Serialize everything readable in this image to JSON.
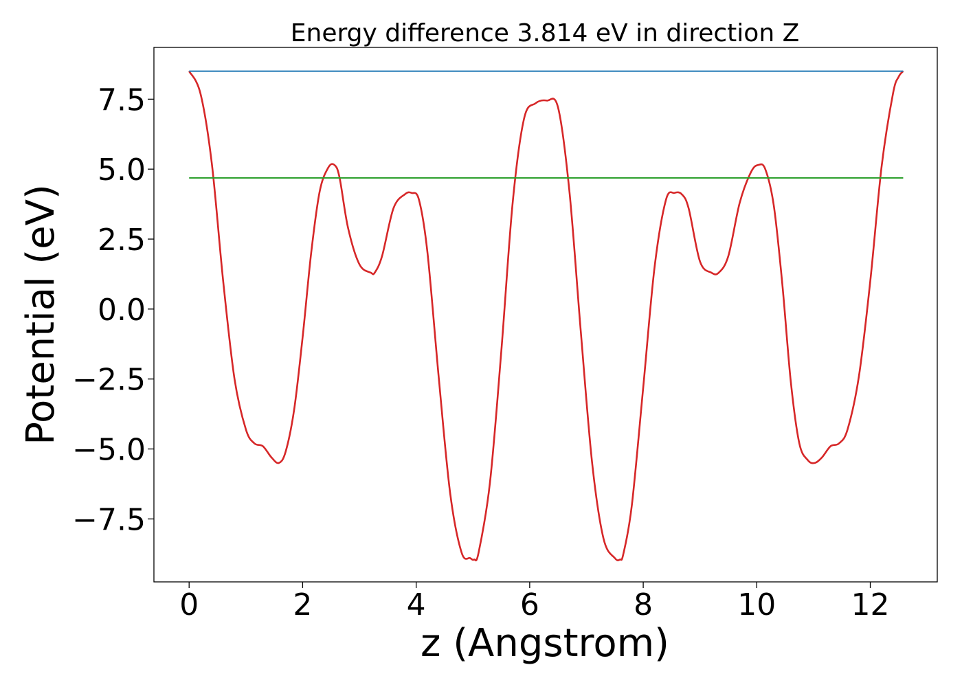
{
  "chart_data": {
    "type": "line",
    "title": "Energy difference 3.814 eV in direction Z",
    "xlabel": "z (Angstrom)",
    "ylabel": "Potential (eV)",
    "xlim": [
      -0.62,
      13.18
    ],
    "ylim": [
      -9.75,
      9.35
    ],
    "xticks": [
      0,
      2,
      4,
      6,
      8,
      10,
      12
    ],
    "yticks": [
      -7.5,
      -5.0,
      -2.5,
      0.0,
      2.5,
      5.0,
      7.5
    ],
    "xtick_labels": [
      "0",
      "2",
      "4",
      "6",
      "8",
      "10",
      "12"
    ],
    "ytick_labels": [
      "−7.5",
      "−5.0",
      "−2.5",
      "0.0",
      "2.5",
      "5.0",
      "7.5"
    ],
    "grid": false,
    "series": [
      {
        "color": "#d62728",
        "x": [
          0.0,
          0.2,
          0.4,
          0.6,
          0.8,
          1.0,
          1.15,
          1.3,
          1.45,
          1.58,
          1.7,
          1.85,
          2.0,
          2.15,
          2.3,
          2.45,
          2.56,
          2.65,
          2.8,
          3.0,
          3.2,
          3.27,
          3.4,
          3.6,
          3.8,
          3.92,
          4.05,
          4.2,
          4.4,
          4.6,
          4.8,
          4.95,
          5.02,
          5.1,
          5.3,
          5.5,
          5.7,
          5.9,
          6.1,
          6.3,
          6.5,
          6.7,
          6.9,
          7.1,
          7.3,
          7.5,
          7.59,
          7.65,
          7.8,
          8.0,
          8.2,
          8.4,
          8.55,
          8.68,
          8.8,
          9.0,
          9.2,
          9.33,
          9.5,
          9.7,
          9.9,
          10.03,
          10.15,
          10.3,
          10.45,
          10.6,
          10.75,
          10.9,
          11.02,
          11.15,
          11.3,
          11.45,
          11.6,
          11.8,
          12.0,
          12.2,
          12.4,
          12.5,
          12.58
        ],
        "y": [
          8.5,
          7.7,
          5.2,
          1.0,
          -2.5,
          -4.3,
          -4.8,
          -4.9,
          -5.3,
          -5.5,
          -5.1,
          -3.6,
          -1.0,
          2.0,
          4.2,
          5.05,
          5.15,
          4.7,
          2.9,
          1.6,
          1.3,
          1.3,
          1.9,
          3.6,
          4.1,
          4.15,
          3.9,
          2.0,
          -2.5,
          -6.6,
          -8.7,
          -8.9,
          -8.95,
          -8.7,
          -6.2,
          -1.5,
          3.8,
          6.8,
          7.35,
          7.45,
          7.2,
          4.2,
          -0.8,
          -5.5,
          -8.2,
          -8.9,
          -8.95,
          -8.75,
          -7.0,
          -2.8,
          1.5,
          3.9,
          4.15,
          4.1,
          3.6,
          1.7,
          1.3,
          1.3,
          1.9,
          3.8,
          4.9,
          5.15,
          5.0,
          3.7,
          0.9,
          -2.6,
          -4.8,
          -5.4,
          -5.5,
          -5.3,
          -4.9,
          -4.8,
          -4.3,
          -2.4,
          1.0,
          5.1,
          7.7,
          8.3,
          8.5
        ]
      },
      {
        "color": "#1f77b4",
        "x": [
          0.0,
          12.58
        ],
        "y": [
          8.5,
          8.5
        ]
      },
      {
        "color": "#2ca02c",
        "x": [
          0.0,
          12.58
        ],
        "y": [
          4.686,
          4.686
        ]
      }
    ]
  }
}
